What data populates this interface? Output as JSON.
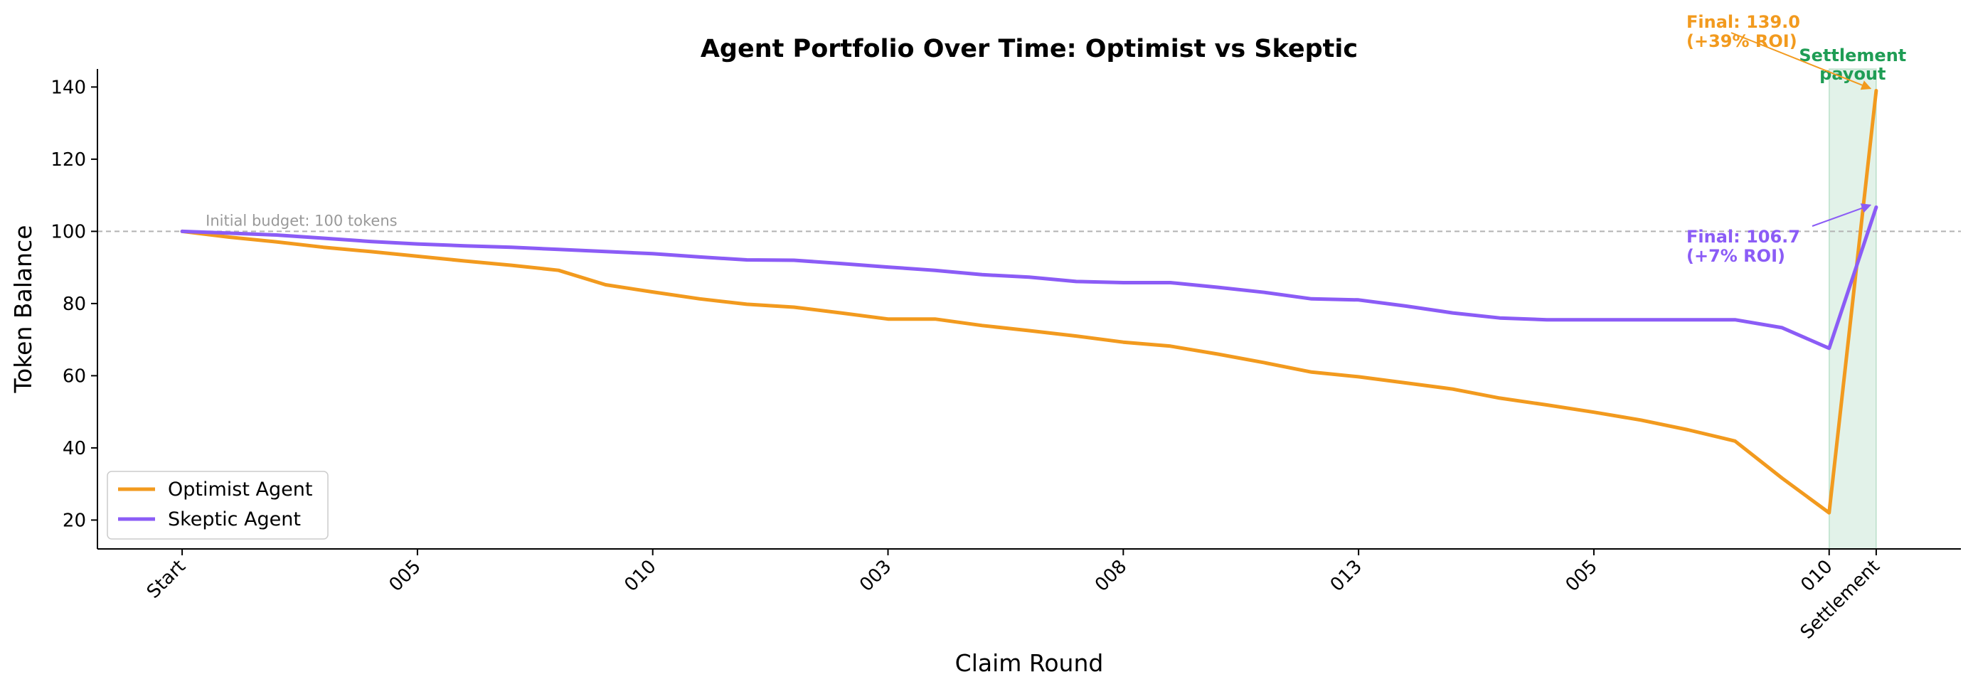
{
  "chart_data": {
    "type": "line",
    "title": "Agent Portfolio Over Time: Optimist vs Skeptic",
    "xlabel": "Claim Round",
    "ylabel": "Token Balance",
    "ylim": [
      12,
      145
    ],
    "yticks": [
      20,
      40,
      60,
      80,
      100,
      120,
      140
    ],
    "xlim": [
      -1.8,
      37.8
    ],
    "xticks": [
      {
        "x": 0,
        "label": "Start"
      },
      {
        "x": 5,
        "label": "005"
      },
      {
        "x": 10,
        "label": "010"
      },
      {
        "x": 15,
        "label": "003"
      },
      {
        "x": 20,
        "label": "008"
      },
      {
        "x": 25,
        "label": "013"
      },
      {
        "x": 30,
        "label": "005"
      },
      {
        "x": 35,
        "label": "010"
      },
      {
        "x": 36,
        "label": "Settlement"
      }
    ],
    "series": [
      {
        "name": "Optimist Agent",
        "color": "#F29A1E",
        "x": [
          0,
          1,
          2,
          3,
          4,
          5,
          6,
          7,
          8,
          9,
          10,
          11,
          12,
          13,
          14,
          15,
          16,
          17,
          18,
          19,
          20,
          21,
          22,
          23,
          24,
          25,
          26,
          27,
          28,
          29,
          30,
          31,
          32,
          33,
          34,
          35,
          36
        ],
        "values": [
          100,
          98.4,
          97.1,
          95.6,
          94.4,
          93.1,
          91.8,
          90.6,
          89.2,
          85.2,
          83.2,
          81.3,
          79.8,
          79.0,
          77.4,
          75.7,
          75.7,
          73.9,
          72.5,
          71.0,
          69.3,
          68.2,
          66.0,
          63.6,
          61.0,
          59.7,
          58.0,
          56.3,
          53.8,
          51.9,
          49.9,
          47.7,
          45.0,
          41.9,
          31.6,
          22.0,
          139.0
        ]
      },
      {
        "name": "Skeptic Agent",
        "color": "#8B5CF6",
        "x": [
          0,
          1,
          2,
          3,
          4,
          5,
          6,
          7,
          8,
          9,
          10,
          11,
          12,
          13,
          14,
          15,
          16,
          17,
          18,
          19,
          20,
          21,
          22,
          23,
          24,
          25,
          26,
          27,
          28,
          29,
          30,
          31,
          32,
          33,
          34,
          35,
          36
        ],
        "values": [
          100,
          99.5,
          99.0,
          98.1,
          97.2,
          96.5,
          96.0,
          95.6,
          95.0,
          94.4,
          93.8,
          92.9,
          92.1,
          92.0,
          91.1,
          90.1,
          89.2,
          88.0,
          87.3,
          86.1,
          85.8,
          85.8,
          84.5,
          83.1,
          81.3,
          81.0,
          79.3,
          77.4,
          76.0,
          75.5,
          75.5,
          75.5,
          75.5,
          75.5,
          73.3,
          67.6,
          106.7
        ]
      }
    ],
    "reference_line": {
      "y": 100,
      "label": "Initial budget: 100 tokens"
    },
    "settlement_band": {
      "x0": 35,
      "x1": 36,
      "label_line1": "Settlement",
      "label_line2": "payout",
      "color": "#1F9D55"
    },
    "annotations": [
      {
        "series": 0,
        "line1": "Final: 139.0",
        "line2": "(+39% ROI)",
        "color": "#F29A1E"
      },
      {
        "series": 1,
        "line1": "Final: 106.7",
        "line2": "(+7% ROI)",
        "color": "#8B5CF6"
      }
    ],
    "legend": {
      "position": "lower-left",
      "entries": [
        "Optimist Agent",
        "Skeptic Agent"
      ]
    },
    "grid": false
  }
}
